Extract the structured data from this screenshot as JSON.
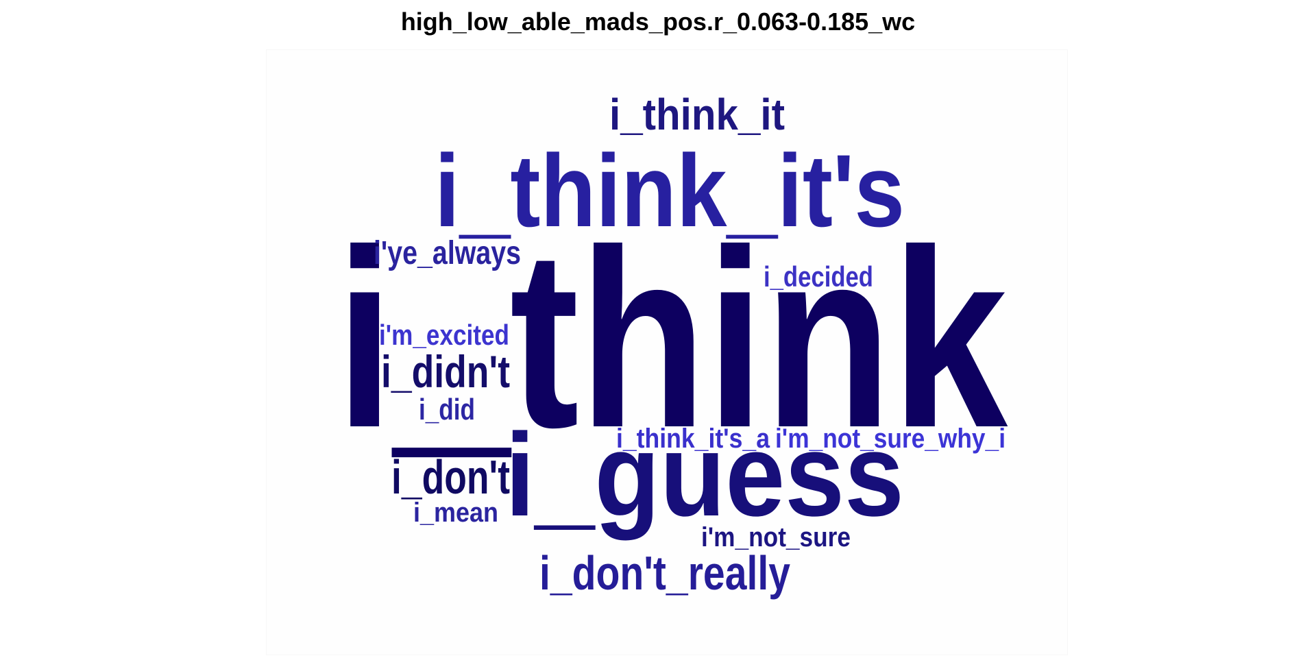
{
  "title": "high_low_able_mads_pos.r_0.063-0.185_wc",
  "words": [
    {
      "text": "i_think",
      "color": "#0d0060"
    },
    {
      "text": "i_think_it's",
      "color": "#2720a0"
    },
    {
      "text": "i_guess",
      "color": "#170f7a"
    },
    {
      "text": "i_think_it",
      "color": "#1e1780"
    },
    {
      "text": "i'ye_always",
      "color": "#2a239e"
    },
    {
      "text": "i_decided",
      "color": "#3c32c4"
    },
    {
      "text": "i'm_excited",
      "color": "#3c34cf"
    },
    {
      "text": "i_didn't",
      "color": "#140d6a"
    },
    {
      "text": "i_did",
      "color": "#2c26a3"
    },
    {
      "text": "i_don't",
      "color": "#100a62"
    },
    {
      "text": "i_mean",
      "color": "#2b249f"
    },
    {
      "text": "i_think_it's_a",
      "color": "#3a30cc"
    },
    {
      "text": "i'm_not_sure_why_i",
      "color": "#3c34d6"
    },
    {
      "text": "i'm_not_sure",
      "color": "#1c1582"
    },
    {
      "text": "i_don't_really",
      "color": "#251d98"
    }
  ]
}
